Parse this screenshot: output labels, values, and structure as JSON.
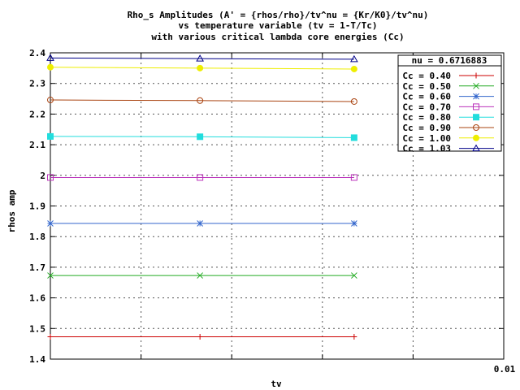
{
  "chart_data": {
    "type": "line",
    "title_lines": [
      "Rho_s Amplitudes (A' = {rhos/rho}/tv^nu = {Kr/K0}/tv^nu)",
      "vs temperature variable (tv = 1-T/Tc)",
      "with various critical lambda core energies (Cc)"
    ],
    "xlabel": "tv",
    "ylabel": "rhos amp",
    "xlim": [
      0,
      0.01
    ],
    "ylim": [
      1.4,
      2.4
    ],
    "x_tick_labels": [
      {
        "value": 0.01,
        "label": "0.01"
      }
    ],
    "y_ticks": [
      1.4,
      1.5,
      1.6,
      1.7,
      1.8,
      1.9,
      2.0,
      2.1,
      2.2,
      2.3,
      2.4
    ],
    "y_tick_labels": [
      "1.4",
      "1.5",
      "1.6",
      "1.7",
      "1.8",
      "1.9",
      "2",
      "2.1",
      "2.2",
      "2.3",
      "2.4"
    ],
    "grid": true,
    "legend": {
      "title": "nu = 0.6716883",
      "position": "top-right"
    },
    "x": [
      0.0,
      0.0033,
      0.0067
    ],
    "series": [
      {
        "name": "Cc = 0.40",
        "values": [
          1.473,
          1.473,
          1.473
        ],
        "color": "#cc0000",
        "marker": "plus"
      },
      {
        "name": "Cc = 0.50",
        "values": [
          1.673,
          1.673,
          1.673
        ],
        "color": "#22aa22",
        "marker": "x"
      },
      {
        "name": "Cc = 0.60",
        "values": [
          1.843,
          1.843,
          1.843
        ],
        "color": "#3366cc",
        "marker": "star"
      },
      {
        "name": "Cc = 0.70",
        "values": [
          1.993,
          1.993,
          1.993
        ],
        "color": "#bb33bb",
        "marker": "square"
      },
      {
        "name": "Cc = 0.80",
        "values": [
          2.127,
          2.126,
          2.123
        ],
        "color": "#22dddd",
        "marker": "filled-square"
      },
      {
        "name": "Cc = 0.90",
        "values": [
          2.246,
          2.244,
          2.241
        ],
        "color": "#aa4411",
        "marker": "circle"
      },
      {
        "name": "Cc = 1.00",
        "values": [
          2.353,
          2.35,
          2.347
        ],
        "color": "#eeee00",
        "marker": "filled-circle"
      },
      {
        "name": "Cc = 1.03",
        "values": [
          2.383,
          2.381,
          2.379
        ],
        "color": "#000088",
        "marker": "triangle"
      }
    ]
  }
}
